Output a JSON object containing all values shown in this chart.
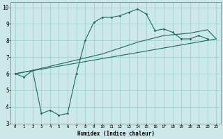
{
  "xlabel": "Humidex (Indice chaleur)",
  "bg_color": "#cce8e8",
  "grid_color": "#99cccc",
  "line_color": "#1a6b5a",
  "xlim": [
    -0.5,
    23.5
  ],
  "ylim": [
    3,
    10.3
  ],
  "xticks": [
    0,
    1,
    2,
    3,
    4,
    5,
    6,
    7,
    8,
    9,
    10,
    11,
    12,
    13,
    14,
    15,
    16,
    17,
    18,
    19,
    20,
    21,
    22,
    23
  ],
  "yticks": [
    3,
    4,
    5,
    6,
    7,
    8,
    9,
    10
  ],
  "line1_x": [
    0,
    1,
    2,
    3,
    4,
    5,
    6,
    7,
    8,
    9,
    10,
    11,
    12,
    13,
    14,
    15,
    16,
    17,
    18,
    19,
    20,
    21,
    22
  ],
  "line1_y": [
    6.0,
    5.8,
    6.2,
    3.6,
    3.8,
    3.5,
    3.6,
    6.0,
    8.0,
    9.1,
    9.4,
    9.4,
    9.5,
    9.7,
    9.9,
    9.6,
    8.6,
    8.7,
    8.5,
    8.1,
    8.1,
    8.3,
    8.1
  ],
  "line2_x": [
    0,
    2,
    10,
    14,
    17,
    18,
    19,
    20,
    21,
    22,
    23
  ],
  "line2_y": [
    6.0,
    6.2,
    7.2,
    7.9,
    8.3,
    8.35,
    8.4,
    8.45,
    8.55,
    8.65,
    8.1
  ],
  "line3_x": [
    0,
    23
  ],
  "line3_y": [
    6.0,
    8.1
  ]
}
